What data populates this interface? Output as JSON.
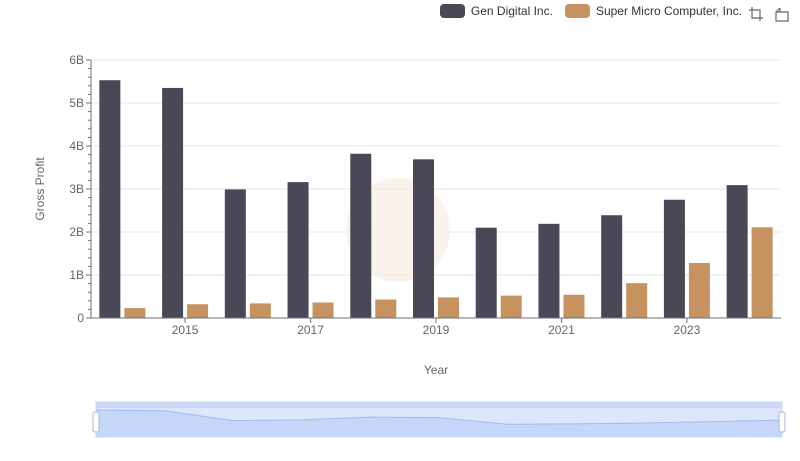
{
  "legend": {
    "items": [
      {
        "label": "Gen Digital Inc.",
        "color": "#484856"
      },
      {
        "label": "Super Micro Computer, Inc.",
        "color": "#c69260"
      }
    ]
  },
  "toolbar": {
    "icons": [
      "zoom-icon",
      "restore-icon"
    ]
  },
  "chart_data": {
    "type": "bar",
    "xlabel": "Year",
    "ylabel": "Gross Profit",
    "ylim": [
      0,
      6000000000
    ],
    "yticks": [
      "0",
      "1B",
      "2B",
      "3B",
      "4B",
      "5B",
      "6B"
    ],
    "xticks": [
      "2015",
      "2017",
      "2019",
      "2021",
      "2023"
    ],
    "categories": [
      "2014",
      "2015",
      "2016",
      "2017",
      "2018",
      "2019",
      "2020",
      "2021",
      "2022",
      "2023",
      "2024"
    ],
    "series": [
      {
        "name": "Gen Digital Inc.",
        "color": "#484856",
        "values": [
          5530000000,
          5350000000,
          2990000000,
          3160000000,
          3820000000,
          3690000000,
          2100000000,
          2190000000,
          2390000000,
          2750000000,
          3090000000
        ]
      },
      {
        "name": "Super Micro Computer, Inc.",
        "color": "#c69260",
        "values": [
          230000000,
          320000000,
          340000000,
          360000000,
          430000000,
          480000000,
          520000000,
          540000000,
          810000000,
          1280000000,
          2110000000
        ]
      }
    ],
    "grid": true,
    "legend_position": "top-right",
    "datazoom": true
  }
}
